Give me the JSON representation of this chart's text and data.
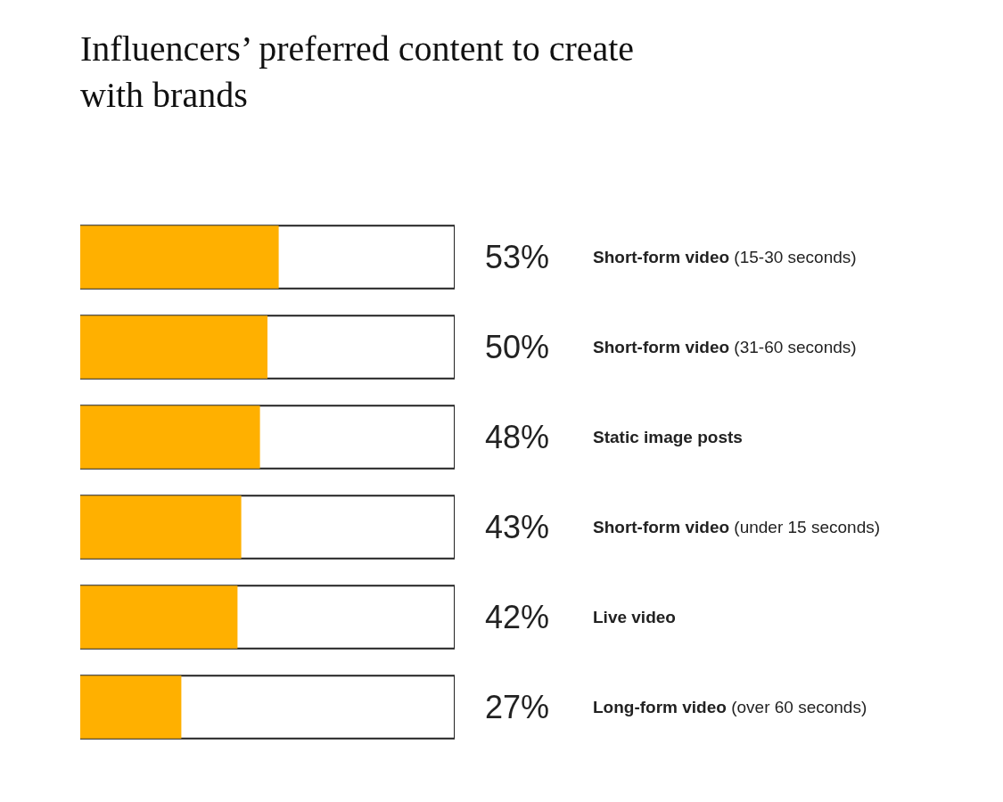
{
  "chart_data": {
    "type": "bar",
    "orientation": "horizontal",
    "title": "Influencers’ preferred content to create with brands",
    "categories": [
      "Short-form video (15-30 seconds)",
      "Short-form video (31-60 seconds)",
      "Static image posts",
      "Short-form video (under 15 seconds)",
      "Live video",
      "Long-form video (over 60 seconds)"
    ],
    "values": [
      53,
      50,
      48,
      43,
      42,
      27
    ],
    "value_labels": [
      "53%",
      "50%",
      "48%",
      "43%",
      "42%",
      "27%"
    ],
    "color": "#ffb000",
    "xlim": [
      0,
      100
    ],
    "tick_labels": false,
    "grid": false,
    "legend": false
  }
}
